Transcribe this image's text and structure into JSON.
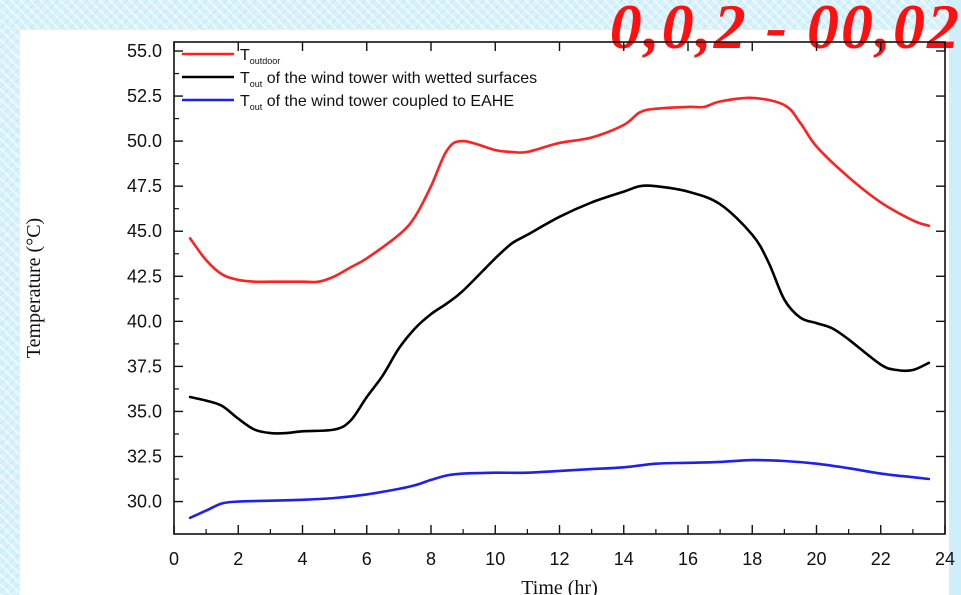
{
  "corner_text": "0,0,2 - 00,02",
  "chart_data": {
    "type": "line",
    "title": "",
    "xlabel": "Time (hr)",
    "ylabel": "Temperature (°C)",
    "xlim": [
      0,
      24
    ],
    "ylim": [
      28.2,
      55.5
    ],
    "xticks": [
      0,
      2,
      4,
      6,
      8,
      10,
      12,
      14,
      16,
      18,
      20,
      22,
      24
    ],
    "yticks": [
      "30.0",
      "32.5",
      "35.0",
      "37.5",
      "40.0",
      "42.5",
      "45.0",
      "47.5",
      "50.0",
      "52.5",
      "55.0"
    ],
    "grid": false,
    "legend_position": "top-left",
    "series": [
      {
        "name": "T",
        "subscript": "outdoor",
        "suffix": "",
        "color": "#ff2020",
        "points": [
          [
            0.5,
            44.6
          ],
          [
            1,
            43.4
          ],
          [
            1.5,
            42.6
          ],
          [
            2,
            42.3
          ],
          [
            2.5,
            42.2
          ],
          [
            3,
            42.2
          ],
          [
            4,
            42.2
          ],
          [
            4.5,
            42.2
          ],
          [
            5,
            42.5
          ],
          [
            5.5,
            43.0
          ],
          [
            6,
            43.5
          ],
          [
            7,
            44.8
          ],
          [
            7.5,
            45.8
          ],
          [
            8,
            47.5
          ],
          [
            8.5,
            49.5
          ],
          [
            9,
            50.0
          ],
          [
            10,
            49.5
          ],
          [
            10.5,
            49.4
          ],
          [
            11,
            49.4
          ],
          [
            12,
            49.9
          ],
          [
            13,
            50.2
          ],
          [
            14,
            50.9
          ],
          [
            14.5,
            51.6
          ],
          [
            15,
            51.8
          ],
          [
            16,
            51.9
          ],
          [
            16.5,
            51.9
          ],
          [
            17,
            52.2
          ],
          [
            18,
            52.4
          ],
          [
            19,
            52.0
          ],
          [
            19.5,
            51.0
          ],
          [
            20,
            49.7
          ],
          [
            21,
            48.0
          ],
          [
            22,
            46.6
          ],
          [
            23,
            45.6
          ],
          [
            23.5,
            45.3
          ]
        ]
      },
      {
        "name": "T",
        "subscript": "out",
        "suffix": " of the wind tower with wetted surfaces",
        "color": "#000000",
        "points": [
          [
            0.5,
            35.8
          ],
          [
            1,
            35.6
          ],
          [
            1.5,
            35.3
          ],
          [
            2,
            34.6
          ],
          [
            2.5,
            34.0
          ],
          [
            3,
            33.8
          ],
          [
            3.5,
            33.8
          ],
          [
            4,
            33.9
          ],
          [
            5,
            34.0
          ],
          [
            5.5,
            34.5
          ],
          [
            6,
            35.8
          ],
          [
            6.5,
            37.0
          ],
          [
            7,
            38.5
          ],
          [
            7.5,
            39.6
          ],
          [
            8,
            40.4
          ],
          [
            8.5,
            41.0
          ],
          [
            9,
            41.7
          ],
          [
            10,
            43.5
          ],
          [
            10.5,
            44.3
          ],
          [
            11,
            44.8
          ],
          [
            12,
            45.8
          ],
          [
            13,
            46.6
          ],
          [
            14,
            47.2
          ],
          [
            14.5,
            47.5
          ],
          [
            15,
            47.5
          ],
          [
            16,
            47.2
          ],
          [
            17,
            46.5
          ],
          [
            18,
            44.8
          ],
          [
            18.5,
            43.3
          ],
          [
            19,
            41.2
          ],
          [
            19.5,
            40.2
          ],
          [
            20,
            39.9
          ],
          [
            20.5,
            39.6
          ],
          [
            21,
            39.0
          ],
          [
            22,
            37.6
          ],
          [
            22.5,
            37.3
          ],
          [
            23,
            37.3
          ],
          [
            23.5,
            37.7
          ]
        ]
      },
      {
        "name": "T",
        "subscript": "out",
        "suffix": " of the wind tower coupled to EAHE",
        "color": "#2020ee",
        "points": [
          [
            0.5,
            29.1
          ],
          [
            1,
            29.5
          ],
          [
            1.5,
            29.9
          ],
          [
            2,
            30.0
          ],
          [
            3,
            30.05
          ],
          [
            4,
            30.1
          ],
          [
            5,
            30.2
          ],
          [
            6,
            30.4
          ],
          [
            7,
            30.7
          ],
          [
            7.5,
            30.9
          ],
          [
            8,
            31.2
          ],
          [
            8.5,
            31.45
          ],
          [
            9,
            31.55
          ],
          [
            10,
            31.6
          ],
          [
            11,
            31.6
          ],
          [
            12,
            31.7
          ],
          [
            13,
            31.8
          ],
          [
            14,
            31.9
          ],
          [
            15,
            32.1
          ],
          [
            16,
            32.15
          ],
          [
            17,
            32.2
          ],
          [
            18,
            32.3
          ],
          [
            19,
            32.25
          ],
          [
            20,
            32.1
          ],
          [
            21,
            31.85
          ],
          [
            22,
            31.55
          ],
          [
            23,
            31.35
          ],
          [
            23.5,
            31.25
          ]
        ]
      }
    ]
  }
}
